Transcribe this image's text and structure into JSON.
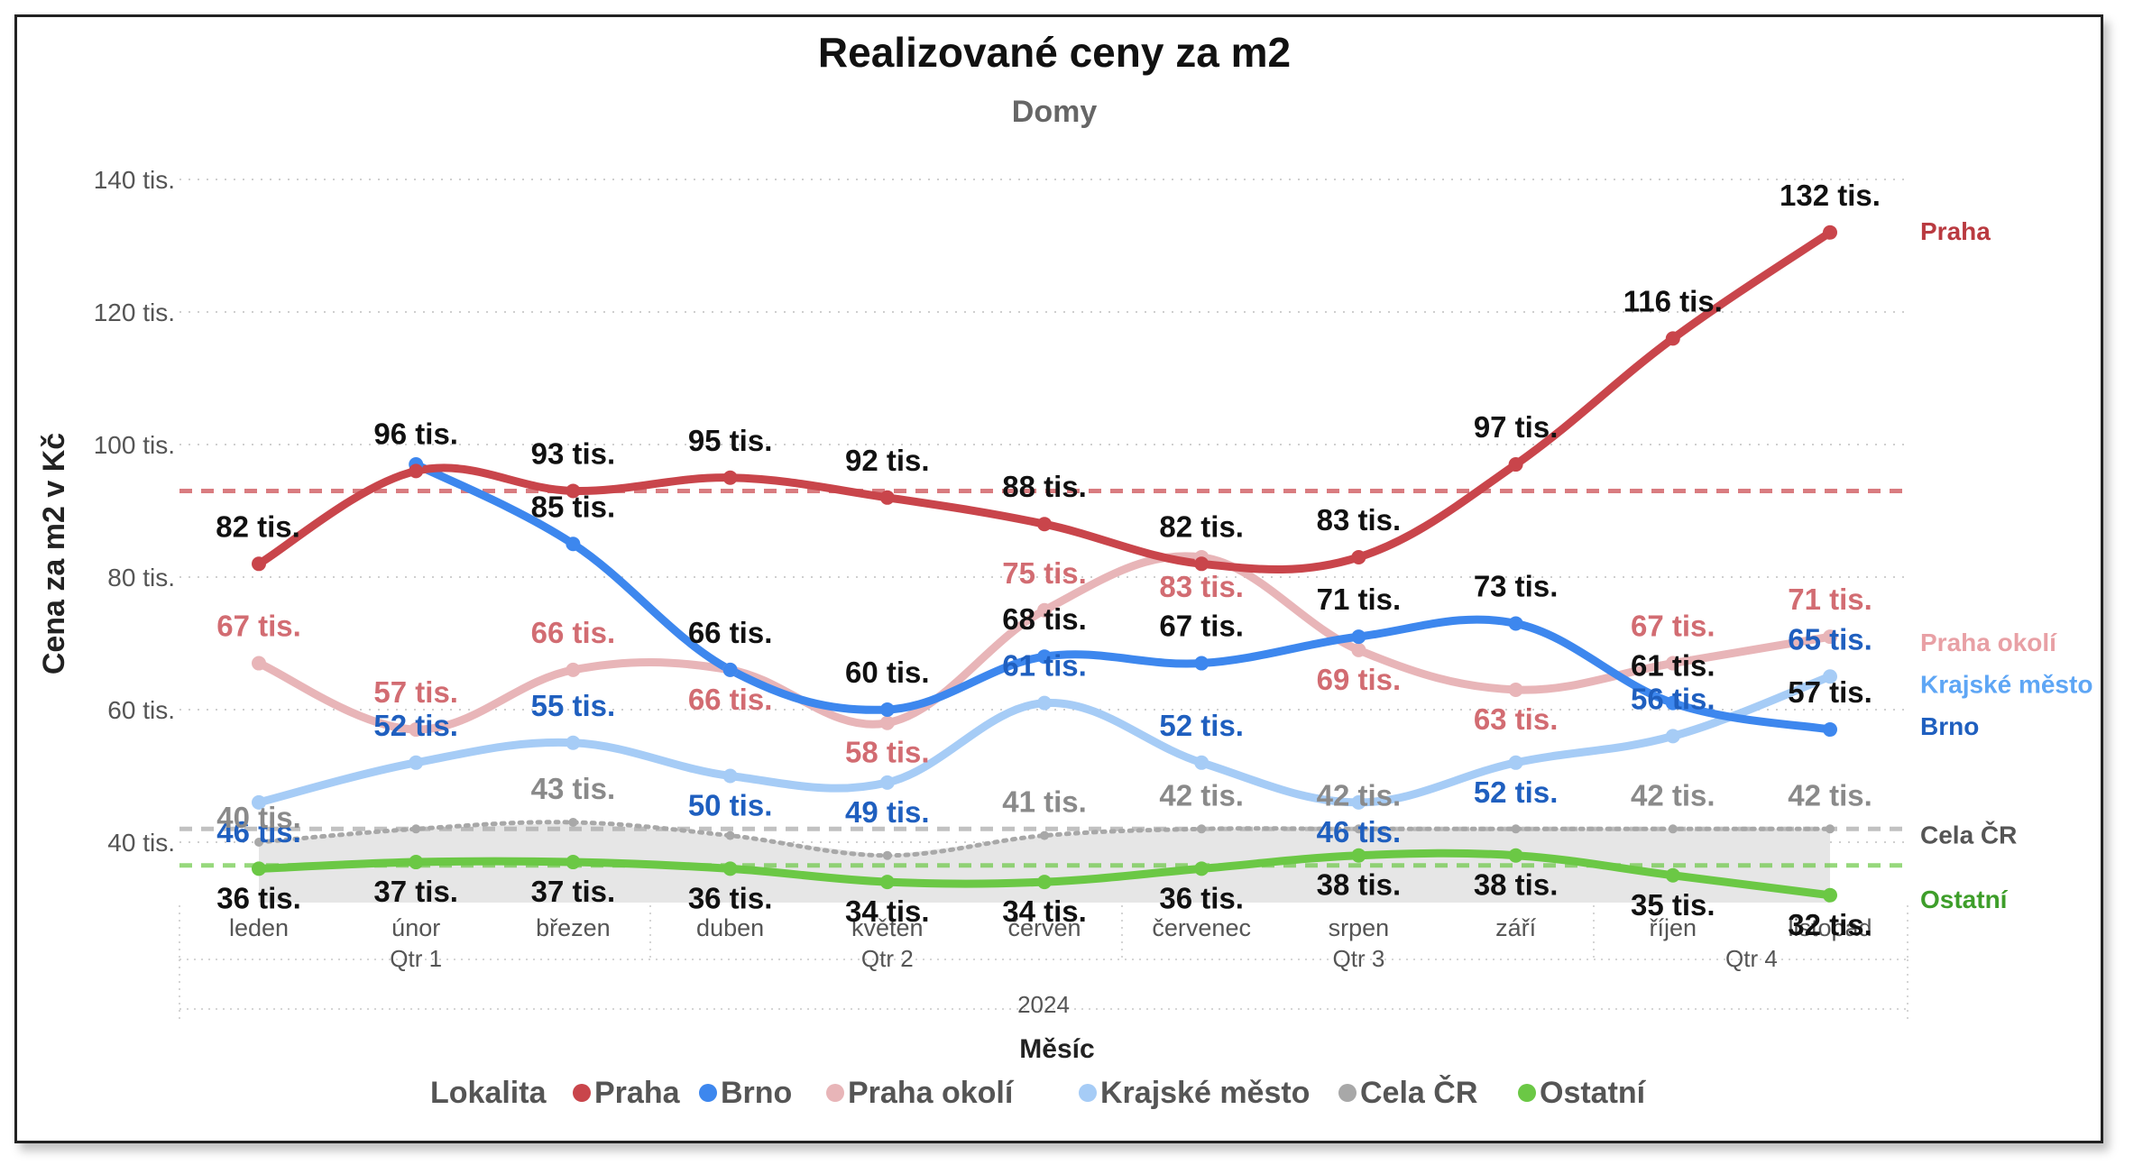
{
  "chart_data": {
    "type": "line",
    "title": "Realizované ceny za m2",
    "subtitle": "Domy",
    "xlabel": "Měsíc",
    "ylabel": "Cena za m2 v Kč",
    "ylim": [
      30,
      140
    ],
    "yticks": [
      {
        "value": 40,
        "label": "40 tis."
      },
      {
        "value": 60,
        "label": "60 tis."
      },
      {
        "value": 80,
        "label": "80 tis."
      },
      {
        "value": 100,
        "label": "100 tis."
      },
      {
        "value": 120,
        "label": "120 tis."
      },
      {
        "value": 140,
        "label": "140 tis."
      }
    ],
    "categories": [
      "leden",
      "únor",
      "březen",
      "duben",
      "květen",
      "červen",
      "červenec",
      "srpen",
      "září",
      "říjen",
      "listopad"
    ],
    "quarters": [
      {
        "label": "Qtr 1",
        "months": [
          0,
          2
        ]
      },
      {
        "label": "Qtr 2",
        "months": [
          3,
          5
        ]
      },
      {
        "label": "Qtr 3",
        "months": [
          6,
          8
        ]
      },
      {
        "label": "Qtr 4",
        "months": [
          9,
          10
        ]
      }
    ],
    "year": "2024",
    "legend_title": "Lokalita",
    "legend_position": "bottom",
    "grid": true,
    "series": [
      {
        "name": "Praha",
        "color": "#C9454B",
        "average": 93,
        "values": [
          82,
          96,
          93,
          95,
          92,
          88,
          82,
          83,
          97,
          116,
          132
        ],
        "labels": [
          "82 tis.",
          "96 tis.",
          "93 tis.",
          "95 tis.",
          "92 tis.",
          "88 tis.",
          "82 tis.",
          "83 tis.",
          "97 tis.",
          "116 tis.",
          "132 tis."
        ]
      },
      {
        "name": "Brno",
        "color": "#3D87EE",
        "values": [
          null,
          97,
          85,
          66,
          60,
          68,
          67,
          71,
          73,
          61,
          57
        ],
        "labels": [
          null,
          null,
          "85 tis.",
          "66 tis.",
          "60 tis.",
          "68 tis.",
          "67 tis.",
          "71 tis.",
          "73 tis.",
          "61 tis.",
          "57 tis."
        ]
      },
      {
        "name": "Praha okolí",
        "color": "#E8B5B8",
        "values": [
          67,
          57,
          66,
          66,
          58,
          75,
          83,
          69,
          63,
          67,
          71
        ],
        "labels": [
          "67 tis.",
          "57 tis.",
          "66 tis.",
          "66 tis.",
          "58 tis.",
          "75 tis.",
          "83 tis.",
          "69 tis.",
          "63 tis.",
          "67 tis.",
          "71 tis."
        ]
      },
      {
        "name": "Krajské město",
        "color": "#A6CCF6",
        "values": [
          46,
          52,
          55,
          50,
          49,
          61,
          52,
          46,
          52,
          56,
          65
        ],
        "labels": [
          "46 tis.",
          "52 tis.",
          "55 tis.",
          "50 tis.",
          "49 tis.",
          "61 tis.",
          "52 tis.",
          "46 tis.",
          "52 tis.",
          "56 tis.",
          "65 tis."
        ]
      },
      {
        "name": "Cela ČR",
        "color": "#A8A8A8",
        "average": 42,
        "values": [
          40,
          42,
          43,
          41,
          38,
          41,
          42,
          42,
          42,
          42,
          42
        ],
        "labels": [
          "40 tis.",
          null,
          "43 tis.",
          null,
          null,
          "41 tis.",
          "42 tis.",
          "42 tis.",
          null,
          "42 tis.",
          "42 tis."
        ]
      },
      {
        "name": "Ostatní",
        "color": "#6BC845",
        "average": 36.5,
        "values": [
          36,
          37,
          37,
          36,
          34,
          34,
          36,
          38,
          38,
          35,
          32
        ],
        "labels": [
          "36 tis.",
          "37 tis.",
          "37 tis.",
          "36 tis.",
          "34 tis.",
          "34 tis.",
          "36 tis.",
          "38 tis.",
          "38 tis.",
          "35 tis.",
          "32 tis."
        ]
      }
    ]
  }
}
